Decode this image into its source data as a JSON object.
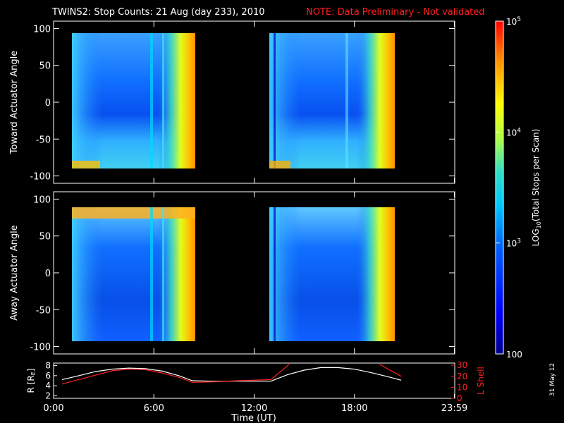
{
  "header": {
    "title": "TWINS2: Stop Counts: 21 Aug (day 233), 2010",
    "note": "NOTE: Data Preliminary - Not validated"
  },
  "date_stamp": "31 May 12",
  "chart_data": [
    {
      "type": "heatmap",
      "panel": "toward",
      "ylabel": "Toward Actuator Angle",
      "ylim": [
        -110,
        110
      ],
      "yticks": [
        100,
        50,
        0,
        -50,
        -100
      ],
      "xlim_hours": [
        0,
        24
      ],
      "data_intervals_hours": [
        [
          0.3,
          8.3
        ],
        [
          13.2,
          20.8
        ]
      ]
    },
    {
      "type": "heatmap",
      "panel": "away",
      "ylabel": "Away Actuator Angle",
      "ylim": [
        -110,
        110
      ],
      "yticks": [
        100,
        50,
        0,
        -50,
        -100
      ],
      "xlim_hours": [
        0,
        24
      ],
      "data_intervals_hours": [
        [
          0.3,
          8.3
        ],
        [
          13.2,
          20.8
        ]
      ]
    },
    {
      "type": "line",
      "panel": "orbit",
      "ylabel_left": "R [RE]",
      "ylabel_left_main": "R [R",
      "ylabel_left_sub": "E",
      "ylabel_left_close": "]",
      "ylabel_right": "L Shell",
      "yticks_left": [
        8,
        6,
        4,
        2
      ],
      "ylim_left": [
        1.5,
        8.5
      ],
      "yticks_right": [
        30,
        20,
        10,
        0
      ],
      "ylim_right": [
        0,
        32
      ],
      "xlabel": "Time (UT)",
      "xticks": [
        "0:00",
        "6:00",
        "12:00",
        "18:00",
        "23:59"
      ],
      "xtick_hours": [
        0,
        6,
        12,
        18,
        23.98
      ],
      "series": [
        {
          "axis": "left",
          "color": "#ffffff",
          "x": [
            0.5,
            1.5,
            2.5,
            3.5,
            4.5,
            5.5,
            6.5,
            7.5,
            8.3,
            9.5,
            11,
            13,
            14,
            15,
            16,
            17,
            18,
            19,
            20,
            20.8
          ],
          "y": [
            5.2,
            6.0,
            6.8,
            7.3,
            7.5,
            7.4,
            6.9,
            6.0,
            5.0,
            4.9,
            4.9,
            4.9,
            6.2,
            7.1,
            7.6,
            7.6,
            7.3,
            6.6,
            5.8,
            5.1
          ]
        },
        {
          "axis": "right",
          "color": "#ff2020",
          "x": [
            0.5,
            1.5,
            2.5,
            3.5,
            4.5,
            5.5,
            6.5,
            7.5,
            8.3,
            9.5,
            11,
            13,
            14.1
          ],
          "y": [
            13,
            17,
            21,
            25,
            26.5,
            26,
            23,
            19,
            14.5,
            15,
            16,
            17,
            31
          ]
        },
        {
          "axis": "right",
          "color": "#ff2020",
          "x": [
            19.5,
            20.8
          ],
          "y": [
            31,
            20
          ]
        }
      ]
    },
    {
      "type": "colorbar",
      "label": "LOG10(Total Stops per Scan)",
      "label_pre": "LOG",
      "label_sub": "10",
      "label_post": "(Total Stops per Scan)",
      "ticks": [
        {
          "base": "10",
          "exp": "5",
          "value": 100000
        },
        {
          "base": "10",
          "exp": "4",
          "value": 10000
        },
        {
          "base": "10",
          "exp": "3",
          "value": 1000
        },
        {
          "base": "100",
          "exp": "",
          "value": 100
        }
      ],
      "range": [
        100,
        100000
      ],
      "scale": "log"
    }
  ]
}
